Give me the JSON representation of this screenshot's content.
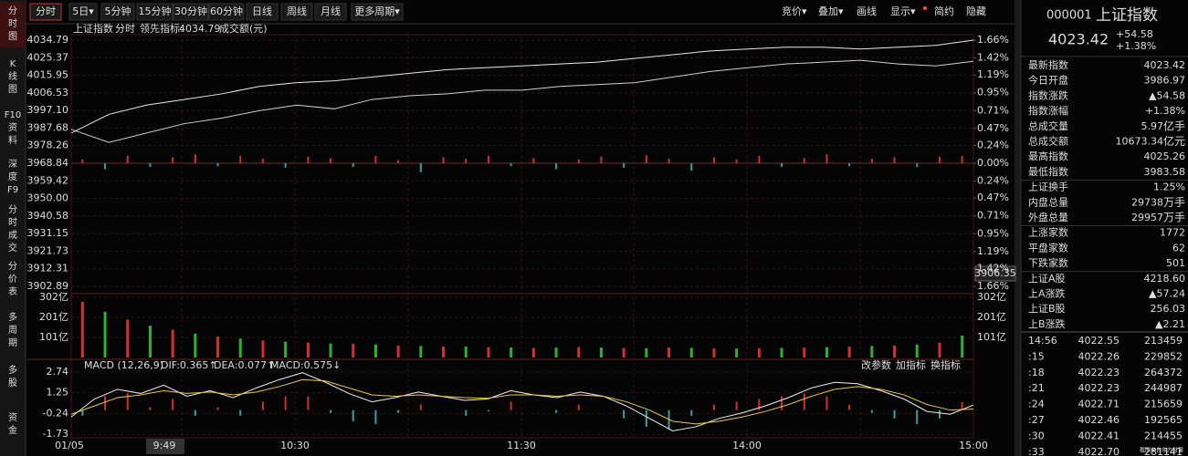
{
  "toolbar": {
    "left": [
      "分时",
      "5日▾",
      "5分钟",
      "15分钟",
      "30分钟",
      "60分钟",
      "日线",
      "周线",
      "月线",
      "更多周期▾"
    ],
    "right": [
      "竞价▾",
      "叠加▾",
      "画线",
      "显示▾",
      "简约",
      "隐藏"
    ]
  },
  "sidebar": [
    [
      "分",
      "时",
      "图"
    ],
    [
      "K",
      "线",
      "图"
    ],
    [
      "F10",
      "资",
      "料"
    ],
    [
      "深",
      "度",
      "F9"
    ],
    [
      "分",
      "时",
      "成",
      "交"
    ],
    [
      "分",
      "价",
      "表"
    ],
    [
      "多",
      "周",
      "期"
    ],
    [
      "多",
      "股"
    ],
    [
      "资",
      "金"
    ]
  ],
  "chart": {
    "header": {
      "name": "上证指数",
      "mode": "分时",
      "lead_label": "领先指标:",
      "lead_value": "4034.79",
      "amount": "成交额(元)"
    },
    "price_ticks": [
      4034.79,
      4025.37,
      4015.95,
      4006.53,
      {
        "value": 3997.1,
        "label": "3997.10"
      },
      3987.68,
      3978.26,
      3968.84,
      3959.42,
      {
        "value": 3950,
        "label": "3950.00"
      },
      3940.58,
      3931.15,
      3921.73,
      3912.31,
      3902.89
    ],
    "percent_ticks": [
      {
        "value": 1.66,
        "label": "1.66%"
      },
      {
        "value": 1.42,
        "label": "1.42%"
      },
      {
        "value": 1.19,
        "label": "1.19%"
      },
      {
        "value": 0.95,
        "label": "0.95%"
      },
      {
        "value": 0.71,
        "label": "0.71%"
      },
      {
        "value": 0.47,
        "label": "0.47%"
      },
      {
        "value": 0.24,
        "label": "0.24%"
      },
      {
        "value": 0,
        "label": "0.00%"
      },
      {
        "value": -0.24,
        "label": "0.24%"
      },
      {
        "value": -0.47,
        "label": "0.47%"
      },
      {
        "value": -0.71,
        "label": "0.71%"
      },
      {
        "value": -0.95,
        "label": "0.95%"
      },
      {
        "value": -1.19,
        "label": "1.19%"
      },
      {
        "value": -1.42,
        "label": "1.42%"
      },
      {
        "value": -1.66,
        "label": "1.66%"
      }
    ],
    "price_tag": "3906.35",
    "price_values": [
      3987,
      3980,
      3985,
      3990,
      3993,
      3997,
      4000,
      3998,
      4003,
      4005,
      4006,
      4008,
      4008,
      4010,
      4011,
      4012,
      4015,
      4018,
      4020,
      4022,
      4023,
      4024,
      4022,
      4021,
      4023.42
    ],
    "leading_values": [
      3985,
      3995,
      4000,
      4003,
      4006,
      4010,
      4012,
      4013,
      4015,
      4017,
      4019,
      4020,
      4021,
      4022,
      4023,
      4025,
      4027,
      4029,
      4030,
      4031,
      4031,
      4030,
      4031,
      4032,
      4034.79
    ],
    "breadth_values": [
      0.05,
      -0.08,
      0.1,
      -0.05,
      0.08,
      0.12,
      -0.04,
      0.1,
      0.06,
      -0.06,
      0.09,
      0.07,
      -0.05,
      0.1,
      0.04,
      -0.12,
      0.08,
      0.06,
      0.1,
      -0.04,
      0.07,
      -0.08,
      0.05,
      0.09,
      -0.06,
      0.11,
      0.06,
      -0.1,
      0.08,
      0.05,
      0.1,
      -0.05,
      0.07,
      0.12,
      -0.04,
      0.06,
      0.08,
      -0.05,
      0.09,
      0.1
    ],
    "volume": {
      "ylim": [
        0,
        302
      ],
      "ticks": [
        {
          "value": 302,
          "label": "302亿"
        },
        {
          "value": 201,
          "label": "201亿"
        },
        {
          "value": 101,
          "label": "101亿"
        }
      ],
      "values": [
        280,
        230,
        190,
        160,
        140,
        120,
        105,
        95,
        85,
        80,
        75,
        70,
        68,
        65,
        60,
        58,
        55,
        55,
        52,
        50,
        48,
        50,
        52,
        50,
        48,
        47,
        50,
        48,
        46,
        45,
        47,
        48,
        50,
        52,
        55,
        58,
        60,
        65,
        75,
        110
      ]
    },
    "macd": {
      "title": "MACD (12,26,9)",
      "dif": "DIF:0.365↑",
      "dea": "DEA:0.077↑",
      "macd": "MACD:0.575↓",
      "buttons": [
        "改参数",
        "加指标",
        "换指标"
      ],
      "ticks": [
        2.74,
        1.25,
        -0.24,
        -1.73
      ],
      "dif_values": [
        -0.5,
        0.8,
        1.5,
        1.2,
        1.8,
        1.0,
        1.4,
        0.9,
        1.6,
        2.2,
        2.7,
        2.0,
        1.2,
        0.6,
        0.9,
        1.3,
        1.0,
        0.7,
        0.8,
        1.4,
        1.1,
        0.9,
        1.3,
        1.0,
        0.3,
        -0.6,
        -1.5,
        -1.2,
        -0.6,
        -0.2,
        0.3,
        0.9,
        1.6,
        2.0,
        1.9,
        1.4,
        0.8,
        -0.1,
        -0.3,
        0.37
      ],
      "dea_values": [
        -0.3,
        0.3,
        0.9,
        1.1,
        1.4,
        1.2,
        1.3,
        1.1,
        1.3,
        1.7,
        2.2,
        2.1,
        1.6,
        1.1,
        1.0,
        1.1,
        1.0,
        0.9,
        0.85,
        1.1,
        1.1,
        1.0,
        1.1,
        1.0,
        0.6,
        0.0,
        -0.8,
        -1.0,
        -0.8,
        -0.5,
        -0.1,
        0.4,
        1.0,
        1.5,
        1.7,
        1.5,
        1.1,
        0.4,
        0.0,
        0.08
      ],
      "macd_values": [
        -0.4,
        1.0,
        1.2,
        0.2,
        0.8,
        -0.4,
        0.2,
        -0.4,
        0.6,
        1.0,
        1.0,
        -0.2,
        -0.8,
        -1.0,
        -0.2,
        0.4,
        0,
        -0.4,
        -0.1,
        0.6,
        0,
        -0.2,
        0.4,
        0,
        -0.6,
        -1.2,
        -1.4,
        -0.4,
        0.4,
        0.6,
        0.8,
        1.0,
        1.2,
        1.0,
        0.4,
        -0.2,
        -0.6,
        -1.0,
        -0.6,
        0.58
      ]
    },
    "x_labels": [
      "01/05",
      "9:49",
      "10:30",
      "11:30",
      "14:00",
      "15:00"
    ]
  },
  "quote": {
    "code": "000001",
    "name": "上证指数",
    "price": "4023.42",
    "change": "+54.58",
    "change_pct": "+1.38%",
    "rows": [
      {
        "label": "最新指数",
        "value": "4023.42",
        "color": "#ff4a4a"
      },
      {
        "label": "今日开盘",
        "value": "3986.97",
        "color": "#ff4a4a"
      },
      {
        "label": "指数涨跌",
        "value": "▲54.58",
        "color": "#ff4a4a"
      },
      {
        "label": "指数涨幅",
        "value": "+1.38%",
        "color": "#ff4a4a"
      },
      {
        "label": "总成交量",
        "value": "5.97",
        "unit": "亿手",
        "color": "#dddddd"
      },
      {
        "label": "总成交额",
        "value": "10673.34",
        "unit": "亿元",
        "color": "#4fd3ff"
      },
      {
        "label": "最高指数",
        "value": "4025.26",
        "color": "#ff4a4a"
      },
      {
        "label": "最低指数",
        "value": "3983.58",
        "color": "#ff4a4a"
      },
      {
        "label": "上证换手",
        "value": "1.25%",
        "color": "#dddddd"
      },
      {
        "label": "内盘总量",
        "value": "29738",
        "unit": "万手",
        "color": "#33dd33"
      },
      {
        "label": "外盘总量",
        "value": "29957",
        "unit": "万手",
        "color": "#ff4a4a"
      },
      {
        "label": "上涨家数",
        "value": "1772",
        "color": "#ff4a4a"
      },
      {
        "label": "平盘家数",
        "value": "62",
        "color": "#dddddd"
      },
      {
        "label": "下跌家数",
        "value": "501",
        "color": "#33dd33"
      },
      {
        "label": "上证A股",
        "value": "4218.60",
        "color": "#ff4a4a"
      },
      {
        "label": "上A涨跌",
        "value": "▲57.24",
        "color": "#ff4a4a"
      },
      {
        "label": "上证B股",
        "value": "256.03",
        "color": "#ff4a4a"
      },
      {
        "label": "上B涨跌",
        "value": "▲2.21",
        "color": "#ff4a4a"
      }
    ],
    "trades": [
      [
        "14:56",
        "4022.55",
        "213459"
      ],
      [
        ":15",
        "4022.26",
        "229852"
      ],
      [
        ":18",
        "4022.23",
        "264372"
      ],
      [
        ":21",
        "4022.23",
        "244987"
      ],
      [
        ":24",
        "4022.71",
        "215659"
      ],
      [
        ":27",
        "4022.46",
        "192565"
      ],
      [
        ":30",
        "4022.41",
        "214455"
      ],
      [
        ":33",
        "4022.70",
        "281141"
      ]
    ]
  },
  "watermark": "截图来自东方财富"
}
